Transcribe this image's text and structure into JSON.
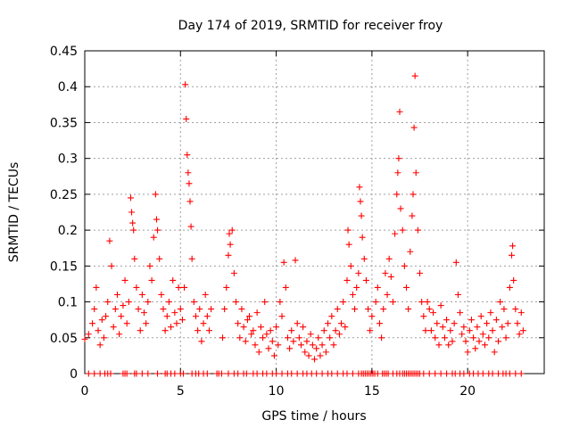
{
  "chart_data": {
    "type": "scatter",
    "title": "Day 174 of 2019, SRMTID for receiver froy",
    "xlabel": "GPS time / hours",
    "ylabel": "SRMTID / TECUs",
    "xlim": [
      0,
      24
    ],
    "ylim": [
      0,
      0.45
    ],
    "x_ticks": [
      0,
      5,
      10,
      15,
      20
    ],
    "x_tick_labels": [
      "0",
      "5",
      "10",
      "15",
      "20"
    ],
    "y_ticks": [
      0,
      0.05,
      0.1,
      0.15,
      0.2,
      0.25,
      0.3,
      0.35,
      0.4,
      0.45
    ],
    "y_tick_labels": [
      "0",
      "0.05",
      "0.1",
      "0.15",
      "0.2",
      "0.25",
      "0.3",
      "0.35",
      "0.4",
      "0.45"
    ],
    "grid": true,
    "marker": "plus",
    "color": "#ff0000",
    "series": [
      {
        "name": "SRMTID",
        "points": [
          [
            0.0,
            0.048
          ],
          [
            0.2,
            0.055
          ],
          [
            0.4,
            0.07
          ],
          [
            0.5,
            0.09
          ],
          [
            0.6,
            0.12
          ],
          [
            0.7,
            0.06
          ],
          [
            0.8,
            0.04
          ],
          [
            0.9,
            0.075
          ],
          [
            1.0,
            0.05
          ],
          [
            1.1,
            0.08
          ],
          [
            1.2,
            0.1
          ],
          [
            1.3,
            0.185
          ],
          [
            1.4,
            0.15
          ],
          [
            1.5,
            0.065
          ],
          [
            1.6,
            0.09
          ],
          [
            1.7,
            0.11
          ],
          [
            1.8,
            0.055
          ],
          [
            1.9,
            0.08
          ],
          [
            2.0,
            0.095
          ],
          [
            2.1,
            0.13
          ],
          [
            2.2,
            0.07
          ],
          [
            2.3,
            0.1
          ],
          [
            2.4,
            0.245
          ],
          [
            2.45,
            0.225
          ],
          [
            2.5,
            0.21
          ],
          [
            2.55,
            0.2
          ],
          [
            2.6,
            0.16
          ],
          [
            2.7,
            0.12
          ],
          [
            2.8,
            0.09
          ],
          [
            2.9,
            0.06
          ],
          [
            3.0,
            0.11
          ],
          [
            3.1,
            0.085
          ],
          [
            3.2,
            0.07
          ],
          [
            3.3,
            0.1
          ],
          [
            3.4,
            0.15
          ],
          [
            3.5,
            0.13
          ],
          [
            3.6,
            0.19
          ],
          [
            3.7,
            0.25
          ],
          [
            3.75,
            0.215
          ],
          [
            3.8,
            0.2
          ],
          [
            3.9,
            0.16
          ],
          [
            4.0,
            0.11
          ],
          [
            4.1,
            0.09
          ],
          [
            4.2,
            0.06
          ],
          [
            4.3,
            0.08
          ],
          [
            4.4,
            0.1
          ],
          [
            4.5,
            0.065
          ],
          [
            4.6,
            0.13
          ],
          [
            4.7,
            0.085
          ],
          [
            4.8,
            0.07
          ],
          [
            4.9,
            0.12
          ],
          [
            5.0,
            0.09
          ],
          [
            5.1,
            0.075
          ],
          [
            5.2,
            0.12
          ],
          [
            5.25,
            0.403
          ],
          [
            5.3,
            0.355
          ],
          [
            5.35,
            0.305
          ],
          [
            5.4,
            0.28
          ],
          [
            5.45,
            0.265
          ],
          [
            5.5,
            0.24
          ],
          [
            5.55,
            0.205
          ],
          [
            5.6,
            0.16
          ],
          [
            5.7,
            0.1
          ],
          [
            5.8,
            0.08
          ],
          [
            5.9,
            0.06
          ],
          [
            6.0,
            0.09
          ],
          [
            6.1,
            0.045
          ],
          [
            6.2,
            0.07
          ],
          [
            6.3,
            0.11
          ],
          [
            6.4,
            0.08
          ],
          [
            6.5,
            0.06
          ],
          [
            6.6,
            0.09
          ],
          [
            7.2,
            0.05
          ],
          [
            7.3,
            0.09
          ],
          [
            7.4,
            0.12
          ],
          [
            7.5,
            0.165
          ],
          [
            7.55,
            0.195
          ],
          [
            7.6,
            0.18
          ],
          [
            7.7,
            0.2
          ],
          [
            7.8,
            0.14
          ],
          [
            7.9,
            0.1
          ],
          [
            8.0,
            0.07
          ],
          [
            8.1,
            0.05
          ],
          [
            8.2,
            0.09
          ],
          [
            8.3,
            0.065
          ],
          [
            8.4,
            0.045
          ],
          [
            8.5,
            0.075
          ],
          [
            8.6,
            0.08
          ],
          [
            8.7,
            0.055
          ],
          [
            8.8,
            0.06
          ],
          [
            8.9,
            0.04
          ],
          [
            9.0,
            0.085
          ],
          [
            9.1,
            0.03
          ],
          [
            9.2,
            0.065
          ],
          [
            9.3,
            0.05
          ],
          [
            9.4,
            0.1
          ],
          [
            9.5,
            0.055
          ],
          [
            9.6,
            0.035
          ],
          [
            9.7,
            0.06
          ],
          [
            9.8,
            0.045
          ],
          [
            9.9,
            0.025
          ],
          [
            10.0,
            0.065
          ],
          [
            10.1,
            0.04
          ],
          [
            10.2,
            0.1
          ],
          [
            10.3,
            0.08
          ],
          [
            10.4,
            0.155
          ],
          [
            10.5,
            0.12
          ],
          [
            10.6,
            0.05
          ],
          [
            10.7,
            0.035
          ],
          [
            10.8,
            0.06
          ],
          [
            10.9,
            0.045
          ],
          [
            11.0,
            0.158
          ],
          [
            11.1,
            0.07
          ],
          [
            11.2,
            0.05
          ],
          [
            11.3,
            0.04
          ],
          [
            11.4,
            0.065
          ],
          [
            11.5,
            0.03
          ],
          [
            11.6,
            0.045
          ],
          [
            11.7,
            0.025
          ],
          [
            11.8,
            0.055
          ],
          [
            11.9,
            0.04
          ],
          [
            12.0,
            0.02
          ],
          [
            12.1,
            0.035
          ],
          [
            12.2,
            0.05
          ],
          [
            12.3,
            0.025
          ],
          [
            12.4,
            0.04
          ],
          [
            12.5,
            0.06
          ],
          [
            12.6,
            0.03
          ],
          [
            12.7,
            0.07
          ],
          [
            12.8,
            0.05
          ],
          [
            12.9,
            0.08
          ],
          [
            13.0,
            0.04
          ],
          [
            13.1,
            0.06
          ],
          [
            13.2,
            0.09
          ],
          [
            13.3,
            0.055
          ],
          [
            13.4,
            0.07
          ],
          [
            13.5,
            0.1
          ],
          [
            13.6,
            0.065
          ],
          [
            13.7,
            0.13
          ],
          [
            13.75,
            0.2
          ],
          [
            13.8,
            0.18
          ],
          [
            13.9,
            0.15
          ],
          [
            14.0,
            0.11
          ],
          [
            14.1,
            0.09
          ],
          [
            14.2,
            0.12
          ],
          [
            14.3,
            0.14
          ],
          [
            14.35,
            0.26
          ],
          [
            14.4,
            0.24
          ],
          [
            14.45,
            0.22
          ],
          [
            14.5,
            0.19
          ],
          [
            14.6,
            0.16
          ],
          [
            14.7,
            0.13
          ],
          [
            14.8,
            0.09
          ],
          [
            14.9,
            0.06
          ],
          [
            15.0,
            0.08
          ],
          [
            15.2,
            0.1
          ],
          [
            15.3,
            0.12
          ],
          [
            15.4,
            0.07
          ],
          [
            15.5,
            0.05
          ],
          [
            15.6,
            0.09
          ],
          [
            15.7,
            0.14
          ],
          [
            15.8,
            0.11
          ],
          [
            15.9,
            0.16
          ],
          [
            16.0,
            0.135
          ],
          [
            16.1,
            0.1
          ],
          [
            16.2,
            0.195
          ],
          [
            16.3,
            0.25
          ],
          [
            16.35,
            0.28
          ],
          [
            16.4,
            0.3
          ],
          [
            16.45,
            0.365
          ],
          [
            16.5,
            0.23
          ],
          [
            16.6,
            0.2
          ],
          [
            16.7,
            0.15
          ],
          [
            16.8,
            0.12
          ],
          [
            16.9,
            0.09
          ],
          [
            17.0,
            0.17
          ],
          [
            17.1,
            0.22
          ],
          [
            17.15,
            0.25
          ],
          [
            17.2,
            0.343
          ],
          [
            17.25,
            0.415
          ],
          [
            17.3,
            0.28
          ],
          [
            17.4,
            0.2
          ],
          [
            17.5,
            0.14
          ],
          [
            17.6,
            0.1
          ],
          [
            17.7,
            0.08
          ],
          [
            17.8,
            0.06
          ],
          [
            17.9,
            0.1
          ],
          [
            18.0,
            0.09
          ],
          [
            18.1,
            0.06
          ],
          [
            18.2,
            0.085
          ],
          [
            18.3,
            0.05
          ],
          [
            18.4,
            0.07
          ],
          [
            18.5,
            0.04
          ],
          [
            18.6,
            0.095
          ],
          [
            18.7,
            0.065
          ],
          [
            18.8,
            0.05
          ],
          [
            18.9,
            0.075
          ],
          [
            19.0,
            0.04
          ],
          [
            19.1,
            0.06
          ],
          [
            19.2,
            0.045
          ],
          [
            19.3,
            0.07
          ],
          [
            19.4,
            0.155
          ],
          [
            19.5,
            0.11
          ],
          [
            19.6,
            0.085
          ],
          [
            19.7,
            0.055
          ],
          [
            19.8,
            0.065
          ],
          [
            19.9,
            0.045
          ],
          [
            20.0,
            0.03
          ],
          [
            20.1,
            0.06
          ],
          [
            20.2,
            0.075
          ],
          [
            20.3,
            0.05
          ],
          [
            20.4,
            0.035
          ],
          [
            20.5,
            0.065
          ],
          [
            20.6,
            0.045
          ],
          [
            20.7,
            0.08
          ],
          [
            20.8,
            0.055
          ],
          [
            20.9,
            0.04
          ],
          [
            21.0,
            0.07
          ],
          [
            21.1,
            0.05
          ],
          [
            21.2,
            0.085
          ],
          [
            21.3,
            0.06
          ],
          [
            21.4,
            0.03
          ],
          [
            21.5,
            0.075
          ],
          [
            21.6,
            0.045
          ],
          [
            21.7,
            0.1
          ],
          [
            21.8,
            0.065
          ],
          [
            21.9,
            0.09
          ],
          [
            22.0,
            0.05
          ],
          [
            22.1,
            0.07
          ],
          [
            22.2,
            0.12
          ],
          [
            22.3,
            0.165
          ],
          [
            22.35,
            0.178
          ],
          [
            22.4,
            0.13
          ],
          [
            22.5,
            0.09
          ],
          [
            22.6,
            0.07
          ],
          [
            22.7,
            0.055
          ],
          [
            22.8,
            0.085
          ],
          [
            22.9,
            0.06
          ]
        ]
      }
    ],
    "zero_hours": [
      0.2,
      0.5,
      0.8,
      1.05,
      1.2,
      1.35,
      2.0,
      2.1,
      2.2,
      2.6,
      2.7,
      3.0,
      3.3,
      3.8,
      4.2,
      4.3,
      4.5,
      4.7,
      5.0,
      5.15,
      5.6,
      5.8,
      5.95,
      6.2,
      6.4,
      6.9,
      7.0,
      7.15,
      7.5,
      7.8,
      8.0,
      8.3,
      8.45,
      8.8,
      9.0,
      9.3,
      9.5,
      9.8,
      10.0,
      10.3,
      10.6,
      10.8,
      11.1,
      11.4,
      11.6,
      11.85,
      12.1,
      12.4,
      12.7,
      12.9,
      13.2,
      13.5,
      13.7,
      14.0,
      14.3,
      14.45,
      14.55,
      14.65,
      14.75,
      14.85,
      14.95,
      15.05,
      15.15,
      15.3,
      15.55,
      15.65,
      15.75,
      15.85,
      16.1,
      16.3,
      16.45,
      16.6,
      16.7,
      16.8,
      16.9,
      17.0,
      17.1,
      17.2,
      17.3,
      17.4,
      17.5,
      17.7,
      18.0,
      18.3,
      18.6,
      18.9,
      19.2,
      19.35,
      19.6,
      19.8,
      20.1,
      20.3,
      20.55,
      20.8,
      21.1,
      21.3,
      21.6,
      21.85,
      22.0,
      22.2,
      22.5,
      22.8
    ]
  }
}
